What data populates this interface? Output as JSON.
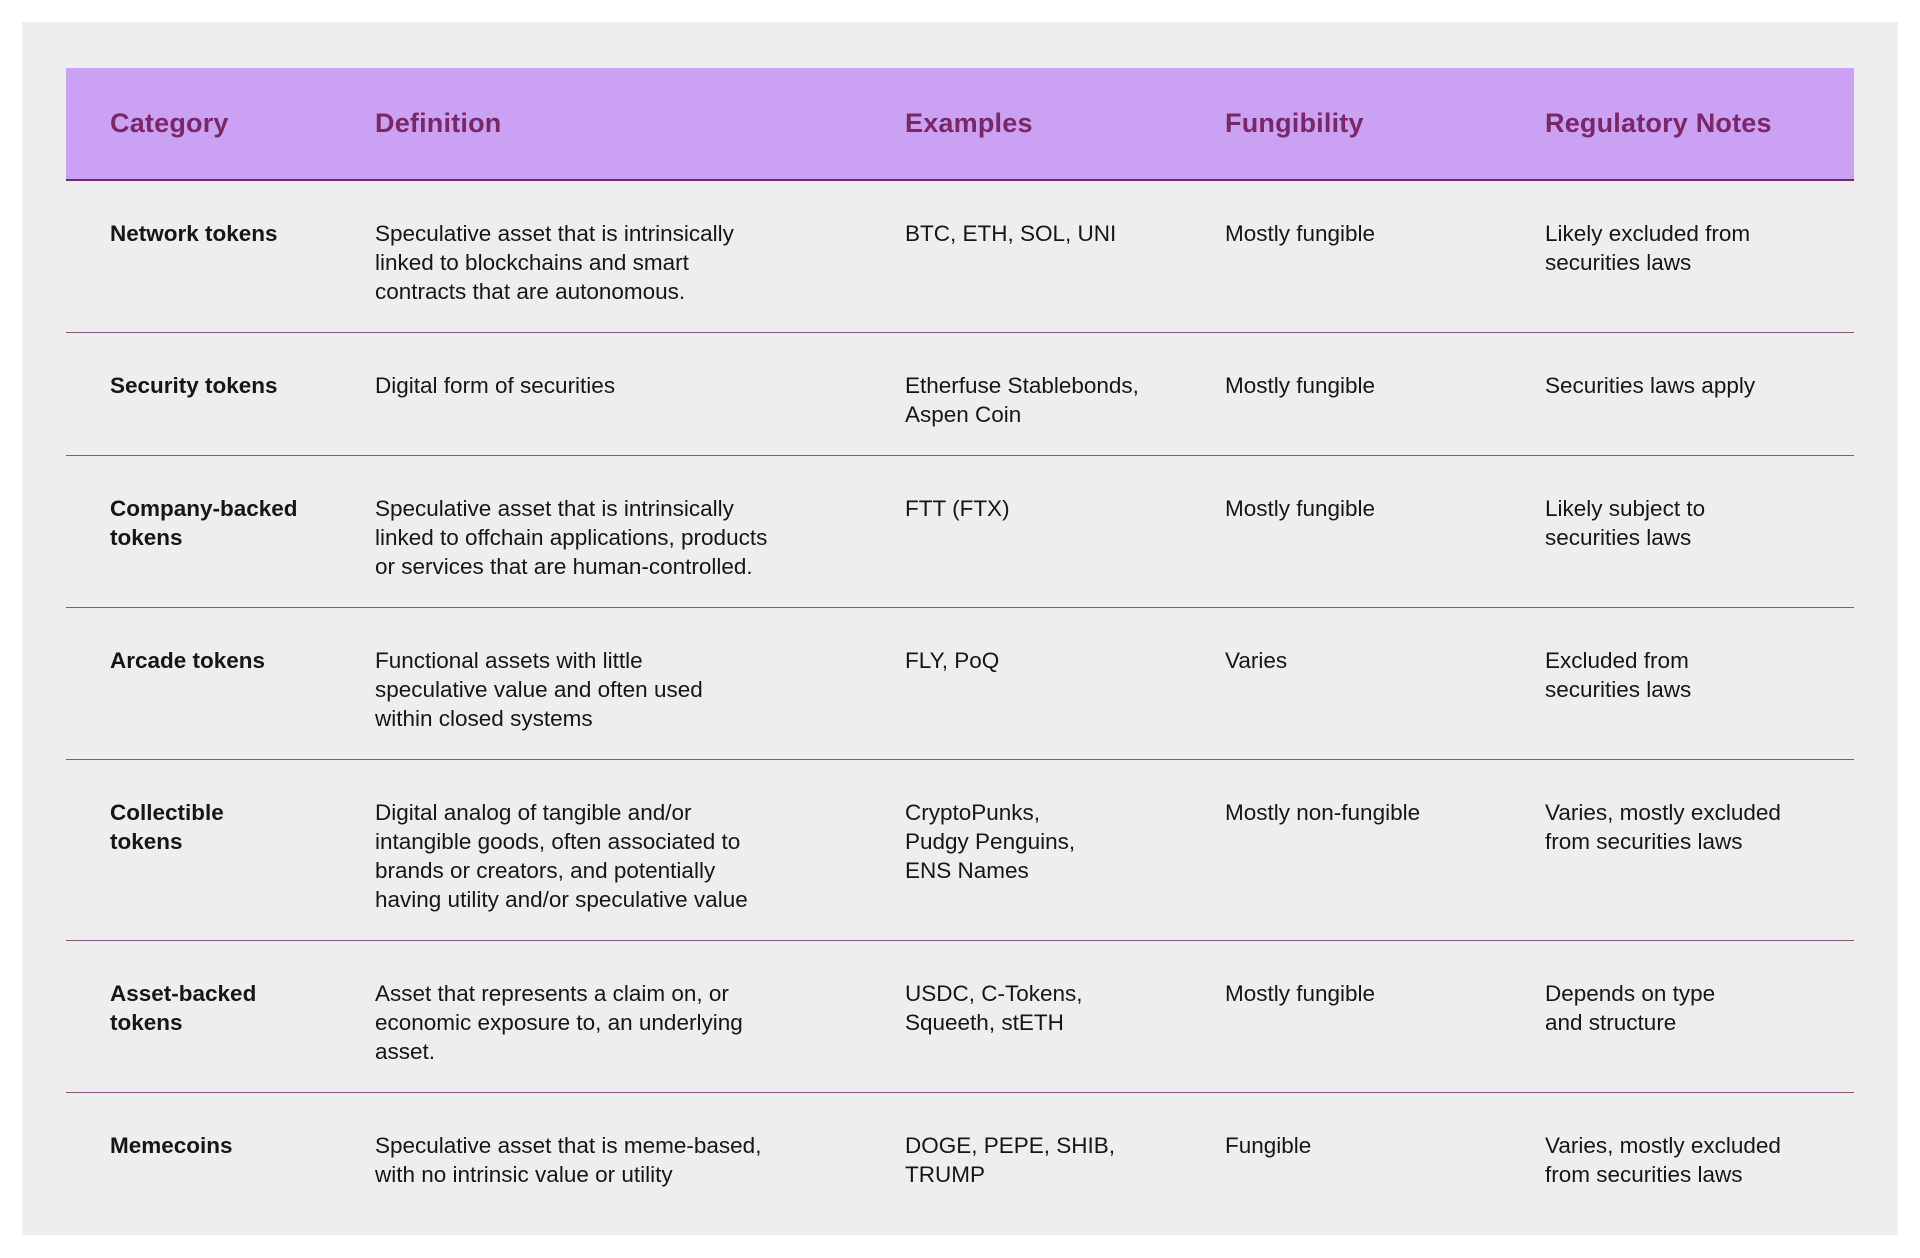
{
  "colors": {
    "page_background": "#ffffff",
    "panel_background": "#efeeef",
    "header_background": "#cba1f4",
    "header_text": "#7b2766",
    "row_divider": "#8c5585",
    "body_text": "#161616"
  },
  "table": {
    "columns": [
      "Category",
      "Definition",
      "Examples",
      "Fungibility",
      "Regulatory Notes"
    ],
    "rows": [
      {
        "category": "Network tokens",
        "definition": "Speculative asset that is intrinsically\nlinked to blockchains and smart\ncontracts that are autonomous.",
        "examples": "BTC, ETH, SOL, UNI",
        "fungibility": "Mostly fungible",
        "regulatory_notes": "Likely excluded from\nsecurities laws"
      },
      {
        "category": "Security tokens",
        "definition": "Digital form of securities",
        "examples": "Etherfuse Stablebonds,\nAspen Coin",
        "fungibility": "Mostly fungible",
        "regulatory_notes": "Securities laws apply"
      },
      {
        "category": "Company-backed\ntokens",
        "definition": "Speculative asset that is intrinsically\nlinked to offchain applications, products\nor services that are human-controlled.",
        "examples": "FTT (FTX)",
        "fungibility": "Mostly fungible",
        "regulatory_notes": "Likely subject to\nsecurities laws"
      },
      {
        "category": "Arcade tokens",
        "definition": "Functional assets with little\nspeculative value and often used\nwithin closed systems",
        "examples": "FLY, PoQ",
        "fungibility": "Varies",
        "regulatory_notes": "Excluded from\nsecurities laws"
      },
      {
        "category": "Collectible\ntokens",
        "definition": "Digital analog of tangible and/or\nintangible goods, often associated to\nbrands or creators, and potentially\nhaving utility and/or speculative value",
        "examples": "CryptoPunks,\nPudgy Penguins,\nENS Names",
        "fungibility": "Mostly non-fungible",
        "regulatory_notes": "Varies, mostly excluded\nfrom securities laws"
      },
      {
        "category": "Asset-backed\ntokens",
        "definition": "Asset that represents a claim on, or\neconomic exposure to, an underlying\nasset.",
        "examples": "USDC, C-Tokens,\nSqueeth, stETH",
        "fungibility": "Mostly fungible",
        "regulatory_notes": "Depends on type\nand structure"
      },
      {
        "category": "Memecoins",
        "definition": "Speculative asset that is meme-based,\nwith no intrinsic value or utility",
        "examples": "DOGE, PEPE, SHIB,\nTRUMP",
        "fungibility": "Fungible",
        "regulatory_notes": "Varies, mostly excluded\nfrom securities laws"
      }
    ]
  }
}
